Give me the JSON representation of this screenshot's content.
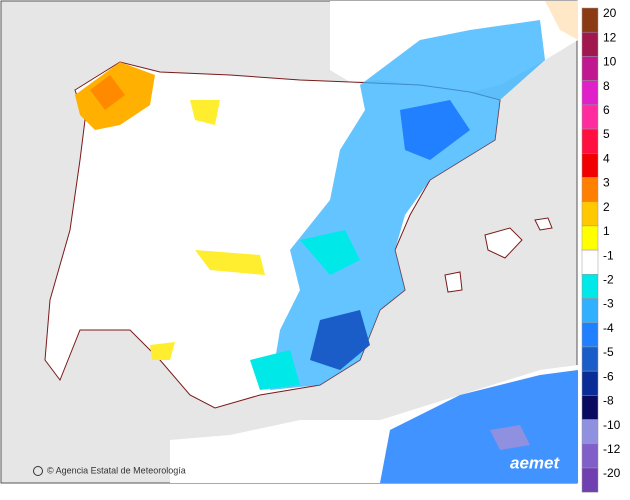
{
  "map": {
    "credit": "© Agencia Estatal de Meteorología",
    "logo": "aemet",
    "legend": {
      "labels": [
        20,
        12,
        10,
        8,
        6,
        5,
        4,
        3,
        2,
        1,
        -1,
        -2,
        -3,
        -4,
        -5,
        -6,
        -8,
        -10,
        -12,
        -20
      ],
      "colors": [
        "#8b3a14",
        "#a0184e",
        "#c01890",
        "#e020c8",
        "#ff2ca0",
        "#ff1040",
        "#f00000",
        "#ff8000",
        "#ffc800",
        "#ffff00",
        "#ffffff",
        "#00e8e8",
        "#30b0ff",
        "#2080ff",
        "#1a5cc8",
        "#0a2c96",
        "#0a0a60",
        "#9090e0",
        "#8060c8",
        "#7040b0"
      ]
    }
  }
}
